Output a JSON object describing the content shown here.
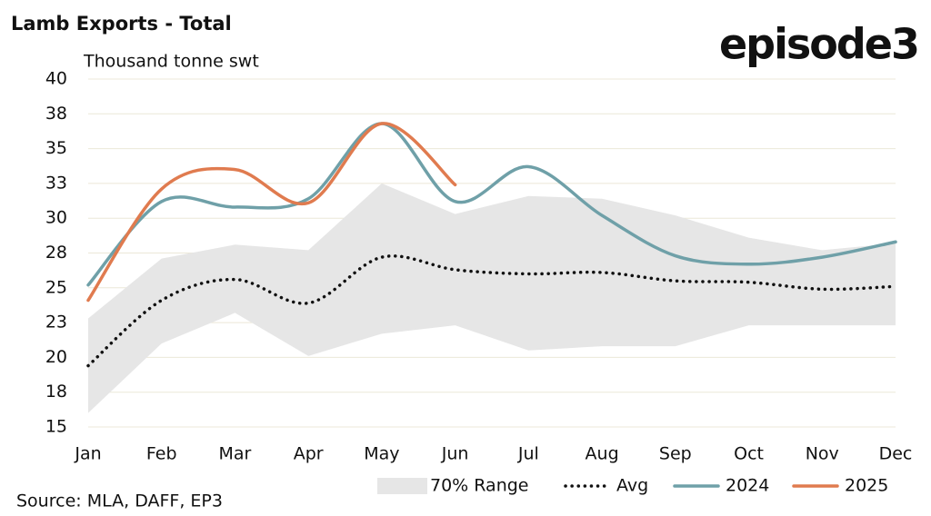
{
  "chart_data": {
    "type": "line",
    "title": "Lamb Exports - Total",
    "subtitle": "Thousand tonne swt",
    "brand": "episode3",
    "source": "Source: MLA, DAFF, EP3",
    "categories": [
      "Jan",
      "Feb",
      "Mar",
      "Apr",
      "May",
      "Jun",
      "Jul",
      "Aug",
      "Sep",
      "Oct",
      "Nov",
      "Dec"
    ],
    "ylim": [
      15,
      40
    ],
    "yticks": [
      15,
      {
        "value": 17.5,
        "label": "18"
      },
      20,
      {
        "value": 22.5,
        "label": "23"
      },
      25,
      {
        "value": 27.5,
        "label": "28"
      },
      30,
      {
        "value": 32.5,
        "label": "33"
      },
      35,
      {
        "value": 37.5,
        "label": "38"
      },
      40
    ],
    "grid": true,
    "legend": "bottom-right",
    "series": [
      {
        "name": "70% Range",
        "kind": "band",
        "color": "#e6e6e6",
        "lower": [
          16.0,
          21.0,
          23.2,
          20.1,
          21.7,
          22.3,
          20.5,
          20.8,
          20.8,
          22.3,
          22.3,
          22.3
        ],
        "upper": [
          22.8,
          27.1,
          28.1,
          27.7,
          32.5,
          30.3,
          31.6,
          31.4,
          30.2,
          28.6,
          27.7,
          28.2
        ]
      },
      {
        "name": "Avg",
        "kind": "dotted",
        "color": "#111111",
        "values": [
          19.4,
          24.1,
          25.6,
          23.9,
          27.2,
          26.3,
          26.0,
          26.1,
          25.5,
          25.4,
          24.9,
          25.1
        ]
      },
      {
        "name": "2024",
        "kind": "line",
        "color": "#6fa0a8",
        "values": [
          25.2,
          31.2,
          30.8,
          31.4,
          36.8,
          31.2,
          33.7,
          30.2,
          27.3,
          26.7,
          27.2,
          28.3
        ]
      },
      {
        "name": "2025",
        "kind": "line",
        "color": "#e07b4f",
        "values": [
          24.1,
          32.1,
          33.5,
          31.1,
          36.8,
          32.4,
          null,
          null,
          null,
          null,
          null,
          null
        ]
      }
    ]
  }
}
